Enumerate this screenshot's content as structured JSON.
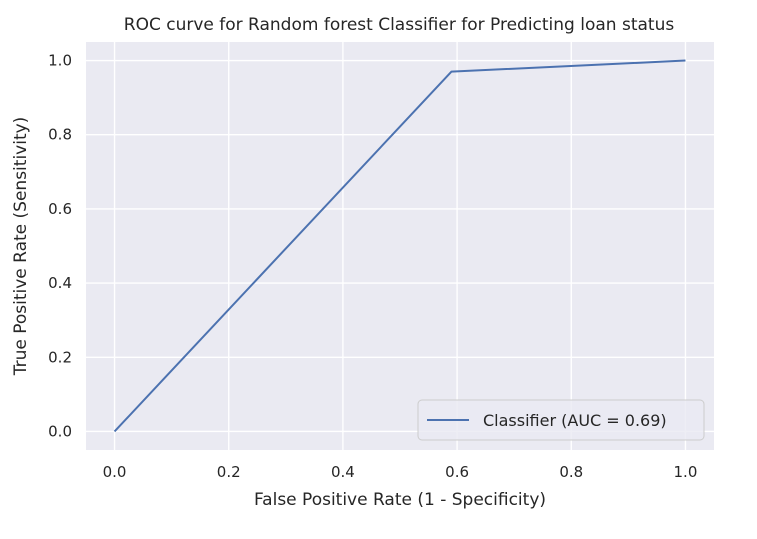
{
  "chart_data": {
    "type": "line",
    "title": "ROC curve for Random forest Classifier for Predicting loan status",
    "xlabel": "False Positive Rate (1 - Specificity)",
    "ylabel": "True Positive Rate (Sensitivity)",
    "xlim": [
      -0.05,
      1.05
    ],
    "ylim": [
      -0.05,
      1.05
    ],
    "x_ticks": [
      0.0,
      0.2,
      0.4,
      0.6,
      0.8,
      1.0
    ],
    "y_ticks": [
      0.0,
      0.2,
      0.4,
      0.6,
      0.8,
      1.0
    ],
    "x_tick_labels": [
      "0.0",
      "0.2",
      "0.4",
      "0.6",
      "0.8",
      "1.0"
    ],
    "y_tick_labels": [
      "0.0",
      "0.2",
      "0.4",
      "0.6",
      "0.8",
      "1.0"
    ],
    "grid": true,
    "legend_position": "lower-right",
    "series": [
      {
        "name": "Classifier (AUC = 0.69)",
        "color": "#4c72b0",
        "x": [
          0.0,
          0.59,
          1.0
        ],
        "y": [
          0.0,
          0.97,
          1.0
        ]
      }
    ],
    "colors": {
      "plot_background": "#eaeaf2",
      "grid": "#ffffff",
      "text": "#262626"
    }
  }
}
